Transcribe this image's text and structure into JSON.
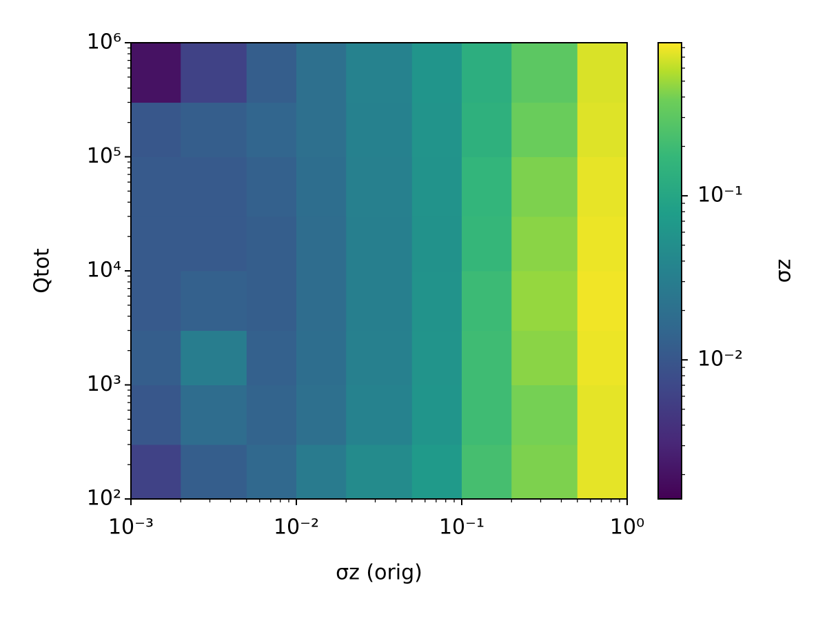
{
  "chart_data": {
    "type": "heatmap",
    "xlabel": "σz (orig)",
    "ylabel": "Qtot",
    "xscale": "log",
    "yscale": "log",
    "xlim": [
      0.001,
      1
    ],
    "ylim": [
      100,
      1000000
    ],
    "xticks": [
      {
        "value": 0.001,
        "label": "10⁻³"
      },
      {
        "value": 0.01,
        "label": "10⁻²"
      },
      {
        "value": 0.1,
        "label": "10⁻¹"
      },
      {
        "value": 1,
        "label": "10⁰"
      }
    ],
    "yticks": [
      {
        "value": 100,
        "label": "10²"
      },
      {
        "value": 1000,
        "label": "10³"
      },
      {
        "value": 10000,
        "label": "10⁴"
      },
      {
        "value": 100000,
        "label": "10⁵"
      },
      {
        "value": 1000000,
        "label": "10⁶"
      }
    ],
    "x_edges": [
      0.001,
      0.002,
      0.005,
      0.01,
      0.02,
      0.05,
      0.1,
      0.2,
      0.5,
      1
    ],
    "y_edges": [
      100,
      300,
      1000,
      3000,
      10000,
      30000,
      100000,
      300000,
      1000000
    ],
    "values": [
      [
        0.006,
        0.012,
        0.016,
        0.028,
        0.045,
        0.07,
        0.22,
        0.42,
        0.75
      ],
      [
        0.01,
        0.018,
        0.014,
        0.02,
        0.035,
        0.06,
        0.2,
        0.4,
        0.75
      ],
      [
        0.012,
        0.03,
        0.013,
        0.019,
        0.033,
        0.058,
        0.2,
        0.45,
        0.78
      ],
      [
        0.011,
        0.013,
        0.012,
        0.018,
        0.032,
        0.056,
        0.19,
        0.48,
        0.8
      ],
      [
        0.011,
        0.011,
        0.012,
        0.018,
        0.032,
        0.055,
        0.17,
        0.45,
        0.78
      ],
      [
        0.011,
        0.011,
        0.013,
        0.019,
        0.033,
        0.056,
        0.16,
        0.42,
        0.76
      ],
      [
        0.01,
        0.012,
        0.015,
        0.02,
        0.034,
        0.058,
        0.14,
        0.36,
        0.72
      ],
      [
        0.002,
        0.006,
        0.012,
        0.02,
        0.035,
        0.06,
        0.13,
        0.3,
        0.7
      ]
    ],
    "colorbar": {
      "label": "σz",
      "colormap": "viridis",
      "scale": "log",
      "lim": [
        0.00142,
        0.857
      ],
      "ticks": [
        {
          "value": 0.01,
          "label": "10⁻²"
        },
        {
          "value": 0.1,
          "label": "10⁻¹"
        }
      ]
    }
  }
}
